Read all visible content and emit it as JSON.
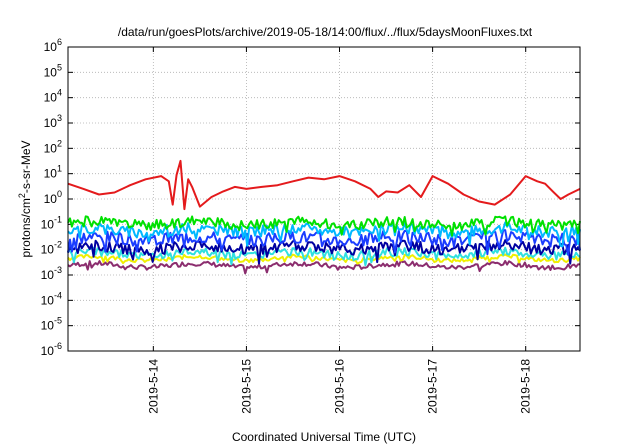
{
  "chart_data": {
    "type": "line",
    "title": "/data/run/goesPlots/archive/2019-05-18/14:00/flux/../flux/5daysMoonFluxes.txt",
    "xlabel": "Coordinated Universal Time (UTC)",
    "ylabel": "protons/cm2-s-sr-MeV",
    "ylabel_parts": {
      "pre": "protons/cm",
      "sup": "2",
      "post": "-s-sr-MeV"
    },
    "yscale": "log",
    "ylim": [
      1e-06,
      1000000.0
    ],
    "y_ticks": [
      {
        "mant": "10",
        "exp": "-6"
      },
      {
        "mant": "10",
        "exp": "-5"
      },
      {
        "mant": "10",
        "exp": "-4"
      },
      {
        "mant": "10",
        "exp": "-3"
      },
      {
        "mant": "10",
        "exp": "-2"
      },
      {
        "mant": "10",
        "exp": "-1"
      },
      {
        "mant": "10",
        "exp": "0"
      },
      {
        "mant": "10",
        "exp": "1"
      },
      {
        "mant": "10",
        "exp": "2"
      },
      {
        "mant": "10",
        "exp": "3"
      },
      {
        "mant": "10",
        "exp": "4"
      },
      {
        "mant": "10",
        "exp": "5"
      },
      {
        "mant": "10",
        "exp": "6"
      }
    ],
    "xlim": [
      "2019-05-13T02:00",
      "2019-05-18T14:00"
    ],
    "x_ticks": [
      "2019-5-14",
      "2019-5-15",
      "2019-5-16",
      "2019-5-17",
      "2019-5-18"
    ],
    "grid": true,
    "series": [
      {
        "color": "#e41a1c",
        "x": [
          "2019-05-13T02:00",
          "2019-05-13T06:00",
          "2019-05-13T10:00",
          "2019-05-13T14:00",
          "2019-05-13T18:00",
          "2019-05-13T22:00",
          "2019-05-14T02:00",
          "2019-05-14T04:00",
          "2019-05-14T05:00",
          "2019-05-14T06:00",
          "2019-05-14T07:00",
          "2019-05-14T08:00",
          "2019-05-14T09:00",
          "2019-05-14T10:00",
          "2019-05-14T12:00",
          "2019-05-14T15:00",
          "2019-05-14T18:00",
          "2019-05-14T21:00",
          "2019-05-15T00:00",
          "2019-05-15T04:00",
          "2019-05-15T08:00",
          "2019-05-15T12:00",
          "2019-05-15T16:00",
          "2019-05-15T20:00",
          "2019-05-16T00:00",
          "2019-05-16T04:00",
          "2019-05-16T08:00",
          "2019-05-16T10:00",
          "2019-05-16T12:00",
          "2019-05-16T15:00",
          "2019-05-16T18:00",
          "2019-05-16T21:00",
          "2019-05-17T00:00",
          "2019-05-17T04:00",
          "2019-05-17T08:00",
          "2019-05-17T12:00",
          "2019-05-17T16:00",
          "2019-05-17T20:00",
          "2019-05-18T00:00",
          "2019-05-18T03:00",
          "2019-05-18T05:00",
          "2019-05-18T07:00",
          "2019-05-18T09:00",
          "2019-05-18T11:00",
          "2019-05-18T14:00"
        ],
        "values": [
          4,
          2.5,
          1.5,
          1.8,
          3.5,
          6,
          8,
          5,
          0.6,
          9,
          32,
          0.4,
          6,
          3,
          0.5,
          1.2,
          2,
          3,
          2.5,
          3,
          3.5,
          5,
          7,
          6,
          8,
          5,
          2.5,
          1.2,
          2,
          1.8,
          3.5,
          1.2,
          8,
          4,
          1.5,
          0.8,
          0.6,
          1.5,
          8,
          5,
          4,
          2,
          1.0,
          1.5,
          2.5
        ]
      },
      {
        "color": "#00e000",
        "x": [
          "2019-05-13T02:00",
          "2019-05-18T14:00"
        ],
        "base": 0.11,
        "jitter": 0.25,
        "seed": 1
      },
      {
        "color": "#00b8ff",
        "x": [
          "2019-05-13T02:00",
          "2019-05-18T14:00"
        ],
        "base": 0.06,
        "jitter": 0.28,
        "seed": 2
      },
      {
        "color": "#1a3cff",
        "x": [
          "2019-05-13T02:00",
          "2019-05-18T14:00"
        ],
        "base": 0.028,
        "jitter": 0.32,
        "seed": 3
      },
      {
        "color": "#0000a0",
        "x": [
          "2019-05-13T02:00",
          "2019-05-18T14:00"
        ],
        "base": 0.012,
        "jitter": 0.28,
        "seed": 4
      },
      {
        "color": "#30e0e0",
        "x": [
          "2019-05-13T02:00",
          "2019-05-18T14:00"
        ],
        "base": 0.007,
        "jitter": 0.2,
        "seed": 5
      },
      {
        "color": "#f0f000",
        "x": [
          "2019-05-13T02:00",
          "2019-05-18T14:00"
        ],
        "base": 0.0045,
        "jitter": 0.1,
        "seed": 6
      },
      {
        "color": "#8b2d6e",
        "x": [
          "2019-05-13T02:00",
          "2019-05-18T14:00"
        ],
        "base": 0.0024,
        "jitter": 0.12,
        "seed": 7
      }
    ]
  }
}
